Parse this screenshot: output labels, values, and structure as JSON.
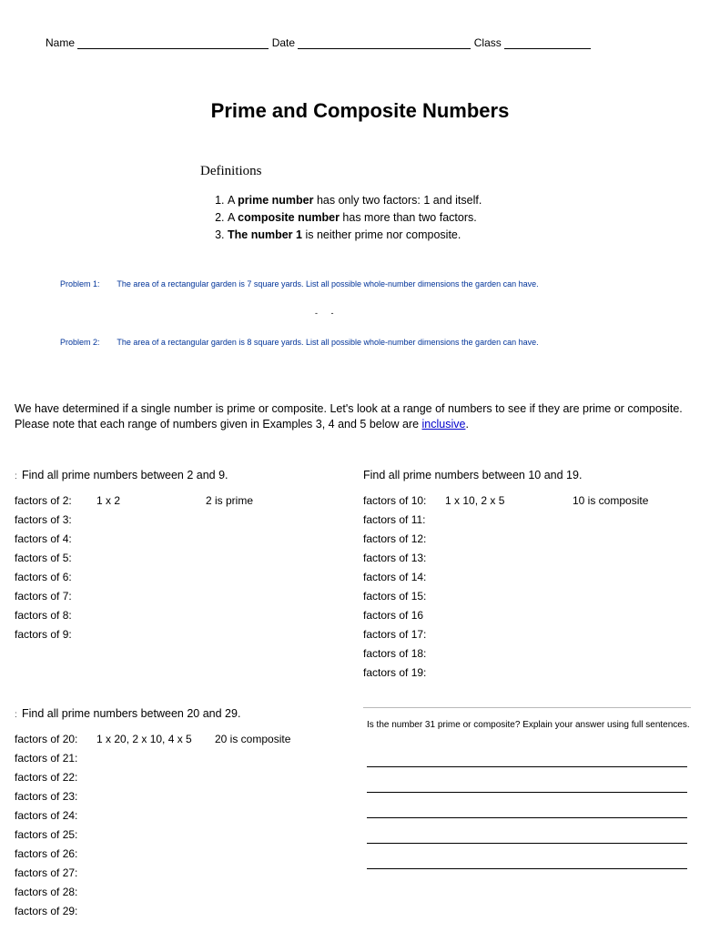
{
  "header": {
    "name_label": "Name",
    "date_label": "Date",
    "class_label": "Class"
  },
  "title": "Prime and Composite Numbers",
  "definitions": {
    "heading": "Definitions",
    "items": [
      {
        "bold": "prime number",
        "pre": "A ",
        "post": " has only two factors: 1 and itself."
      },
      {
        "bold": "composite number",
        "pre": "A ",
        "post": " has more than two factors."
      },
      {
        "bold": "The number 1",
        "pre": "",
        "post": " is neither prime nor composite."
      }
    ]
  },
  "problems": {
    "p1_label": "Problem 1:",
    "p1_text": "The area of a rectangular garden is 7 square yards. List all possible whole-number dimensions the garden can have.",
    "p2_label": "Problem 2:",
    "p2_text": "The area of a rectangular garden is 8 square yards. List all possible whole-number dimensions the garden can have."
  },
  "intro": {
    "text_pre": "We have determined if a single number is prime or composite. Let's look at a range of numbers to see if they are prime or composite. Please note that each range of numbers given in Examples 3, 4 and 5 below are ",
    "link": "inclusive",
    "text_post": "."
  },
  "ex3": {
    "title": "Find all prime numbers between 2 and 9.",
    "rows": [
      {
        "label": "factors of 2:",
        "sol": "1 x 2",
        "res": "2 is prime"
      },
      {
        "label": "factors of 3:",
        "sol": "",
        "res": ""
      },
      {
        "label": "factors of 4:",
        "sol": "",
        "res": ""
      },
      {
        "label": "factors of 5:",
        "sol": "",
        "res": ""
      },
      {
        "label": "factors of 6:",
        "sol": "",
        "res": ""
      },
      {
        "label": "factors of 7:",
        "sol": "",
        "res": ""
      },
      {
        "label": "factors of 8:",
        "sol": "",
        "res": ""
      },
      {
        "label": "factors of 9:",
        "sol": "",
        "res": ""
      }
    ]
  },
  "ex4": {
    "title": "Find all prime numbers between 10 and 19.",
    "rows": [
      {
        "label": "factors of 10:",
        "sol": "1 x 10, 2 x 5",
        "res": "10 is composite"
      },
      {
        "label": "factors of 11:",
        "sol": "",
        "res": ""
      },
      {
        "label": "factors of 12:",
        "sol": "",
        "res": ""
      },
      {
        "label": "factors of 13:",
        "sol": "",
        "res": ""
      },
      {
        "label": "factors of 14:",
        "sol": "",
        "res": ""
      },
      {
        "label": "factors of 15:",
        "sol": "",
        "res": ""
      },
      {
        "label": "factors of 16",
        "sol": "",
        "res": ""
      },
      {
        "label": "factors of 17:",
        "sol": "",
        "res": ""
      },
      {
        "label": "factors of 18:",
        "sol": "",
        "res": ""
      },
      {
        "label": "factors of 19:",
        "sol": "",
        "res": ""
      }
    ]
  },
  "ex5": {
    "title": "Find all prime numbers between 20 and 29.",
    "rows": [
      {
        "label": "factors of 20:",
        "sol": "1 x 20, 2 x 10, 4 x 5",
        "res": "20 is composite"
      },
      {
        "label": "factors of 21:",
        "sol": "",
        "res": ""
      },
      {
        "label": "factors of 22:",
        "sol": "",
        "res": ""
      },
      {
        "label": "factors of 23:",
        "sol": "",
        "res": ""
      },
      {
        "label": "factors of 24:",
        "sol": "",
        "res": ""
      },
      {
        "label": "factors of 25:",
        "sol": "",
        "res": ""
      },
      {
        "label": "factors of 26:",
        "sol": "",
        "res": ""
      },
      {
        "label": "factors of 27:",
        "sol": "",
        "res": ""
      },
      {
        "label": "factors of 28:",
        "sol": "",
        "res": ""
      },
      {
        "label": "factors of 29:",
        "sol": "",
        "res": ""
      }
    ]
  },
  "q31": {
    "text": "Is the number 31 prime or composite? Explain your answer using full sentences."
  },
  "colors": {
    "problem_color": "#003399",
    "link_color": "#0000cc",
    "background": "#ffffff",
    "text": "#000000"
  }
}
